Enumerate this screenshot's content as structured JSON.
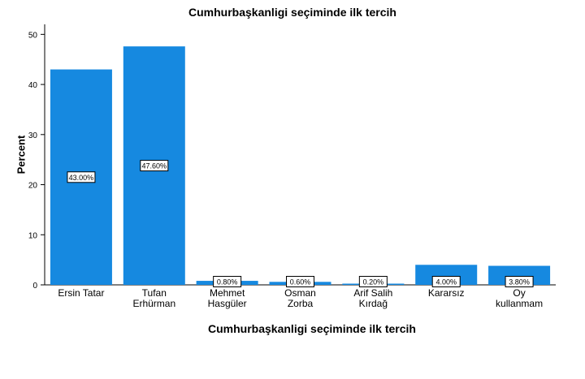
{
  "chart_data": {
    "type": "bar",
    "title": "Cumhurbaşkanligi seçiminde ilk tercih",
    "xlabel": "Cumhurbaşkanligi seçiminde ilk tercih",
    "ylabel": "Percent",
    "ylim": [
      0,
      52
    ],
    "yticks": [
      "0",
      "10",
      "20",
      "30",
      "40",
      "50"
    ],
    "grid": false,
    "bar_color": "#1689e0",
    "categories": [
      [
        "Ersin Tatar"
      ],
      [
        "Tufan",
        "Erhürman"
      ],
      [
        "Mehmet",
        "Hasgüler"
      ],
      [
        "Osman",
        "Zorba"
      ],
      [
        "Arif Salih",
        "Kırdağ"
      ],
      [
        "Kararsız"
      ],
      [
        "Oy",
        "kullanmam"
      ]
    ],
    "values": [
      43.0,
      47.6,
      0.8,
      0.6,
      0.2,
      4.0,
      3.8
    ],
    "data_labels": [
      "43.00%",
      "47.60%",
      "0.80%",
      "0.60%",
      "0.20%",
      "4.00%",
      "3.80%"
    ]
  }
}
